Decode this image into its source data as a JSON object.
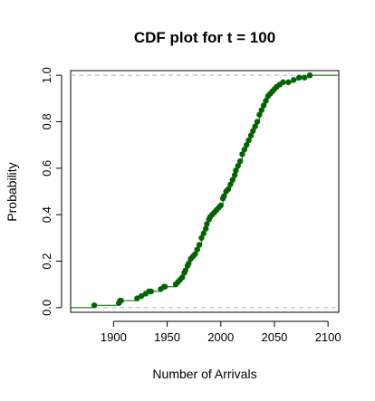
{
  "chart_data": {
    "type": "scatter",
    "title": "CDF plot for t = 100",
    "xlabel": "Number of Arrivals",
    "ylabel": "Probability",
    "xlim": [
      1860,
      2110
    ],
    "ylim": [
      -0.02,
      1.02
    ],
    "x_ticks": [
      1900,
      1950,
      2000,
      2050,
      2100
    ],
    "y_ticks": [
      0.0,
      0.2,
      0.4,
      0.6,
      0.8,
      1.0
    ],
    "x_tick_labels": [
      "1900",
      "1950",
      "2000",
      "2050",
      "2100"
    ],
    "y_tick_labels": [
      "0.0",
      "0.2",
      "0.4",
      "0.6",
      "0.8",
      "1.0"
    ],
    "reference_lines_y": [
      0.0,
      1.0
    ],
    "grid": false,
    "series": [
      {
        "color": "#006400",
        "x": [
          1882,
          1905,
          1906,
          1907,
          1922,
          1926,
          1930,
          1933,
          1935,
          1944,
          1947,
          1948,
          1958,
          1960,
          1962,
          1964,
          1966,
          1967,
          1969,
          1970,
          1972,
          1974,
          1976,
          1978,
          1980,
          1982,
          1984,
          1986,
          1987,
          1989,
          1990,
          1992,
          1994,
          1996,
          1998,
          2000,
          2002,
          2003,
          2005,
          2007,
          2009,
          2011,
          2013,
          2014,
          2016,
          2018,
          2020,
          2022,
          2024,
          2026,
          2028,
          2030,
          2032,
          2034,
          2036,
          2038,
          2040,
          2042,
          2044,
          2046,
          2048,
          2050,
          2052,
          2055,
          2058,
          2063,
          2068,
          2073,
          2078,
          2083
        ],
        "y": [
          0.01,
          0.02,
          0.03,
          0.03,
          0.04,
          0.05,
          0.06,
          0.07,
          0.07,
          0.08,
          0.09,
          0.09,
          0.1,
          0.11,
          0.12,
          0.13,
          0.15,
          0.16,
          0.18,
          0.19,
          0.21,
          0.22,
          0.23,
          0.25,
          0.27,
          0.3,
          0.32,
          0.34,
          0.36,
          0.38,
          0.39,
          0.4,
          0.41,
          0.42,
          0.43,
          0.44,
          0.47,
          0.48,
          0.5,
          0.51,
          0.53,
          0.55,
          0.57,
          0.59,
          0.61,
          0.63,
          0.66,
          0.68,
          0.7,
          0.72,
          0.74,
          0.76,
          0.78,
          0.8,
          0.83,
          0.85,
          0.87,
          0.89,
          0.91,
          0.92,
          0.93,
          0.94,
          0.95,
          0.96,
          0.97,
          0.97,
          0.98,
          0.99,
          0.99,
          1.0
        ]
      }
    ]
  }
}
